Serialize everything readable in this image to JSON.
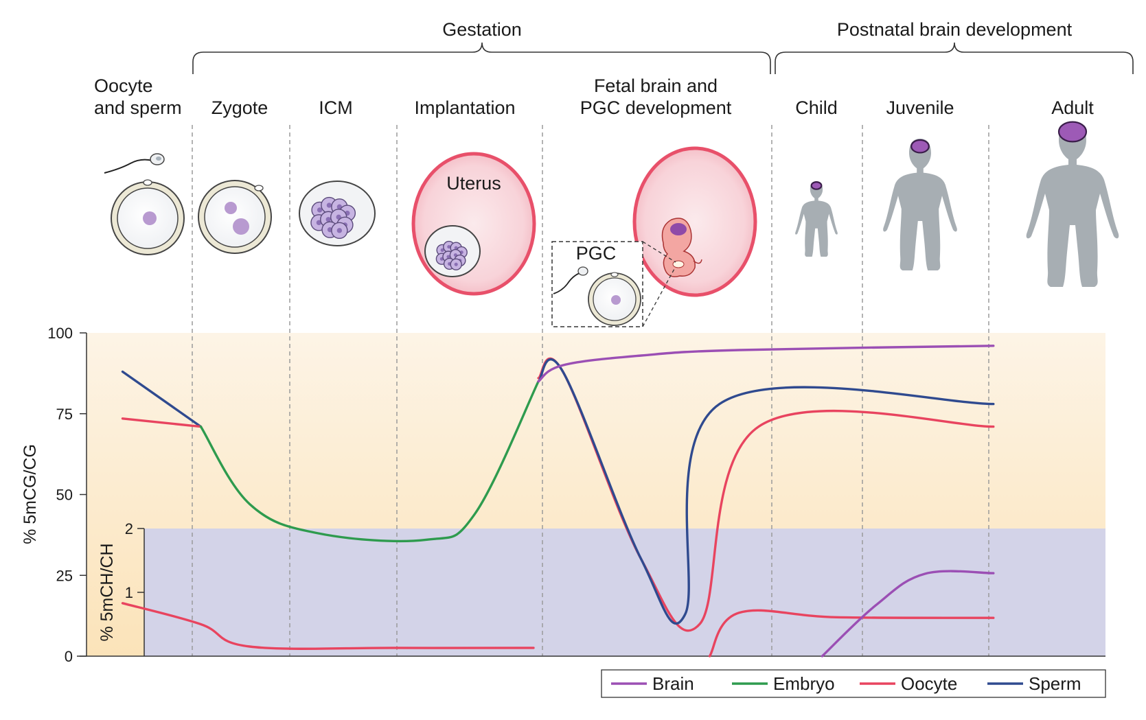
{
  "colors": {
    "brain": "#9b4fb4",
    "embryo": "#2e9b4e",
    "oocyte": "#e8445f",
    "sperm": "#2f4a8f",
    "mch_band": "#d3d3e8",
    "cg_gradient_top": "#fdf4e6",
    "cg_gradient_bottom": "#fbe3b9",
    "uterus": "#e8506a",
    "body_silhouette": "#a7aeb3"
  },
  "groups": {
    "gestation": "Gestation",
    "postnatal": "Postnatal brain development"
  },
  "stages": {
    "oocyte_sperm_1": "Oocyte",
    "oocyte_sperm_2": "and sperm",
    "zygote": "Zygote",
    "icm": "ICM",
    "implantation": "Implantation",
    "fetal_1": "Fetal brain and",
    "fetal_2": "PGC development",
    "child": "Child",
    "juvenile": "Juvenile",
    "adult": "Adult"
  },
  "illustrations": {
    "uterus_label": "Uterus",
    "pgc_label": "PGC"
  },
  "chart_data": {
    "type": "line",
    "x_stages": [
      "Oocyte and sperm",
      "Zygote",
      "ICM",
      "Implantation",
      "Fetal brain and PGC development",
      "Child",
      "Juvenile",
      "Adult"
    ],
    "y_left": {
      "label": "% 5mCG/CG",
      "ticks": [
        "100",
        "75",
        "50",
        "25",
        "0"
      ],
      "range": [
        0,
        100
      ]
    },
    "y_inner": {
      "label": "% 5mCH/CH",
      "ticks": [
        "2",
        "1"
      ],
      "range": [
        0,
        2
      ]
    },
    "series_cg": [
      {
        "name": "Sperm",
        "color_key": "sperm",
        "points": [
          [
            0.2,
            88
          ],
          [
            1.0,
            71
          ]
        ]
      },
      {
        "name": "Oocyte",
        "color_key": "oocyte",
        "points": [
          [
            0.2,
            73.5
          ],
          [
            1.0,
            71
          ]
        ]
      },
      {
        "name": "Embryo",
        "color_key": "embryo",
        "points": [
          [
            1.0,
            71
          ],
          [
            1.5,
            47
          ],
          [
            2.2,
            38
          ],
          [
            3.3,
            36
          ],
          [
            3.8,
            44
          ],
          [
            4.45,
            85
          ]
        ]
      },
      {
        "name": "Brain",
        "color_key": "brain",
        "points": [
          [
            4.45,
            85
          ],
          [
            4.7,
            90
          ],
          [
            5.5,
            93
          ],
          [
            6.5,
            94.7
          ],
          [
            9.1,
            96
          ]
        ]
      },
      {
        "name": "Sperm",
        "color_key": "sperm",
        "points": [
          [
            4.45,
            85
          ],
          [
            4.7,
            88
          ],
          [
            5.5,
            30
          ],
          [
            5.95,
            13
          ],
          [
            6.3,
            78
          ],
          [
            9.1,
            78
          ]
        ]
      },
      {
        "name": "Oocyte",
        "color_key": "oocyte",
        "points": [
          [
            4.45,
            86
          ],
          [
            4.7,
            88
          ],
          [
            5.5,
            30
          ],
          [
            6.1,
            10
          ],
          [
            6.7,
            71
          ],
          [
            9.1,
            71
          ]
        ]
      }
    ],
    "series_ch": [
      {
        "name": "Oocyte",
        "color_key": "oocyte",
        "points": [
          [
            0.2,
            0.83
          ],
          [
            1.0,
            0.5
          ],
          [
            1.5,
            0.15
          ],
          [
            3.0,
            0.13
          ],
          [
            4.4,
            0.13
          ]
        ]
      },
      {
        "name": "Oocyte",
        "color_key": "oocyte",
        "points": [
          [
            6.2,
            0.0
          ],
          [
            6.5,
            0.68
          ],
          [
            7.5,
            0.61
          ],
          [
            9.1,
            0.6
          ]
        ]
      },
      {
        "name": "Brain",
        "color_key": "brain",
        "points": [
          [
            7.35,
            0.0
          ],
          [
            7.9,
            0.8
          ],
          [
            8.4,
            1.29
          ],
          [
            9.1,
            1.3
          ]
        ]
      }
    ],
    "legend": [
      "Brain",
      "Embryo",
      "Oocyte",
      "Sperm"
    ],
    "legend_position": "bottom-right",
    "grid": false
  }
}
